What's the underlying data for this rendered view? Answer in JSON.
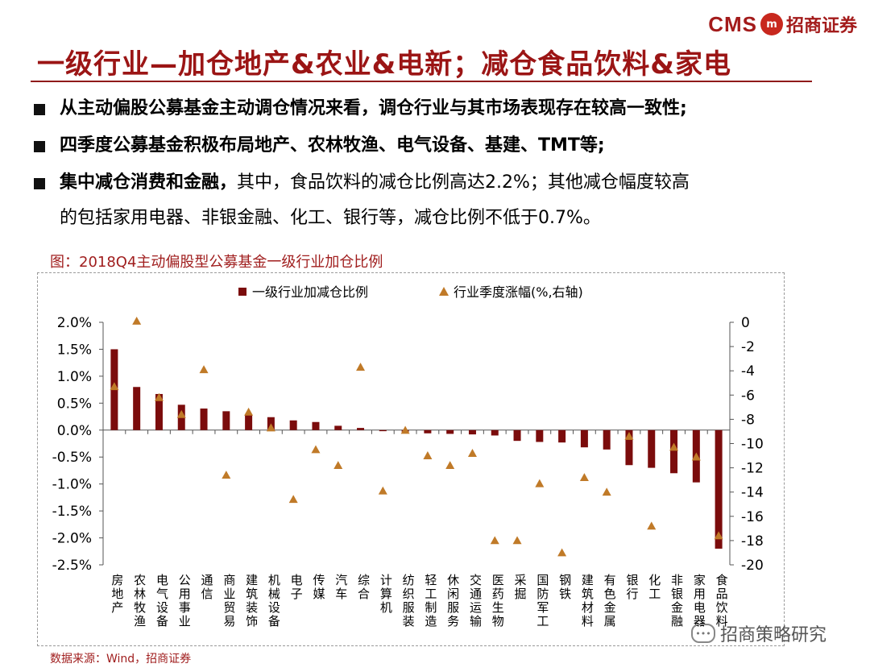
{
  "brand": {
    "latin": "CMS",
    "mark": "m",
    "chinese": "招商证券"
  },
  "title": "一级行业—加仓地产&农业&电新；减仓食品饮料&家电",
  "bullets": [
    {
      "strong": "从主动偏股公募基金主动调仓情况来看，调仓行业与其市场表现存在较高一致性;",
      "rest": ""
    },
    {
      "strong": "四季度公募基金积极布局地产、农林牧渔、电气设备、基建、TMT等;",
      "rest": ""
    },
    {
      "strong": "集中减仓消费和金融，",
      "rest": "其中，食品饮料的减仓比例高达2.2%；其他减仓幅度较高",
      "cont": "的包括家用电器、非银金融、化工、银行等，减仓比例不低于0.7%。"
    }
  ],
  "figure_title": "图：2018Q4主动偏股型公募基金一级行业加仓比例",
  "source": "数据来源：Wind，招商证券",
  "watermark": "招商策略研究",
  "chart_data": {
    "type": "bar",
    "categories": [
      "房地产",
      "农林牧渔",
      "电气设备",
      "公用事业",
      "通信",
      "商业贸易",
      "建筑装饰",
      "机械设备",
      "电子",
      "传媒",
      "汽车",
      "综合",
      "计算机",
      "纺织服装",
      "轻工制造",
      "休闲服务",
      "交通运输",
      "医药生物",
      "采掘",
      "国防军工",
      "钢铁",
      "建筑材料",
      "有色金属",
      "银行",
      "化工",
      "非银金融",
      "家用电器",
      "食品饮料"
    ],
    "series": [
      {
        "name": "一级行业加减仓比例",
        "kind": "bar",
        "axis": "left",
        "color": "#7b0c0c",
        "values": [
          1.5,
          0.8,
          0.67,
          0.47,
          0.4,
          0.35,
          0.28,
          0.24,
          0.18,
          0.15,
          0.08,
          0.04,
          -0.02,
          -0.03,
          -0.06,
          -0.07,
          -0.08,
          -0.1,
          -0.2,
          -0.22,
          -0.23,
          -0.32,
          -0.36,
          -0.65,
          -0.7,
          -0.8,
          -0.97,
          -2.2
        ]
      },
      {
        "name": "行业季度涨幅(%,右轴)",
        "kind": "scatter",
        "axis": "right",
        "color": "#c07a28",
        "values": [
          -5.3,
          0.1,
          -6.2,
          -7.6,
          -3.9,
          -12.6,
          -7.4,
          -8.7,
          -14.6,
          -10.5,
          -11.8,
          -3.7,
          -13.9,
          -8.9,
          -11.0,
          -11.8,
          -10.8,
          -18.0,
          -18.0,
          -13.3,
          -19.0,
          -12.8,
          -14.0,
          -9.4,
          -16.8,
          -10.3,
          -11.1,
          -17.6
        ]
      }
    ],
    "yLeft": {
      "min": -2.5,
      "max": 2.0,
      "ticks": [
        "2.0%",
        "1.5%",
        "1.0%",
        "0.5%",
        "0.0%",
        "-0.5%",
        "-1.0%",
        "-1.5%",
        "-2.0%",
        "-2.5%"
      ]
    },
    "yRight": {
      "min": -20,
      "max": 0,
      "ticks": [
        "0",
        "-2",
        "-4",
        "-6",
        "-8",
        "-10",
        "-12",
        "-14",
        "-16",
        "-18",
        "-20"
      ]
    },
    "legend": "top-center"
  }
}
